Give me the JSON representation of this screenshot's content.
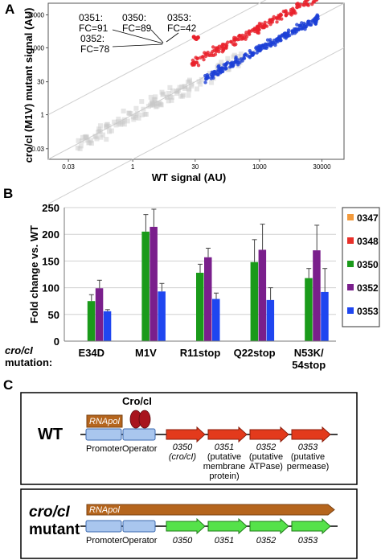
{
  "panels": {
    "a": "A",
    "b": "B",
    "c": "C"
  },
  "colors": {
    "red": "#e8202a",
    "blue": "#1c3fd6",
    "grey": "#c8c8c8",
    "s0347": "#f39a3c",
    "s0348": "#e8302a",
    "s0350": "#1a9a1a",
    "s0352": "#7a1f8c",
    "s0353": "#1f46f0",
    "arrow_red": "#e33a1c",
    "arrow_green": "#55e24a",
    "rnapol": "#b5651d",
    "box_blue": "#a9c6ee",
    "cro_dot": "#a8141e"
  },
  "chart_data": [
    {
      "type": "scatter",
      "xlabel": "WT signal (AU)",
      "ylabel": "cro/cI (M1V) mutant signal (AU)",
      "xscale": "log",
      "yscale": "log",
      "xticks": [
        "0.03",
        "1",
        "30",
        "1000",
        "30000"
      ],
      "yticks": [
        "0.03",
        "1",
        "30",
        "1000",
        "30000"
      ],
      "xlim": [
        0.01,
        100000
      ],
      "ylim": [
        0.01,
        100000
      ],
      "annotations": [
        {
          "label": "0351:",
          "fc": "FC=91"
        },
        {
          "label": "0350:",
          "fc": "FC=89"
        },
        {
          "label": "0353:",
          "fc": "FC=42"
        },
        {
          "label": "0352:",
          "fc": "FC=78"
        }
      ],
      "diagonals": [
        0.01,
        1,
        100
      ]
    },
    {
      "type": "bar",
      "ylabel": "Fold change vs. WT",
      "ylim": [
        0,
        250
      ],
      "yticks": [
        "0",
        "50",
        "100",
        "150",
        "200",
        "250"
      ],
      "categories": [
        "E34D",
        "M1V",
        "R11stop",
        "Q22stop",
        "N53K/\n54stop"
      ],
      "category_lines": [
        [
          "E34D"
        ],
        [
          "M1V"
        ],
        [
          "R11stop"
        ],
        [
          "Q22stop"
        ],
        [
          "N53K/",
          "54stop"
        ]
      ],
      "row_label": [
        "cro/cI",
        "mutation:"
      ],
      "legend_position": "right",
      "series": [
        {
          "name": "0347",
          "values": [
            0.5,
            0.5,
            0.5,
            0.5,
            0.5
          ],
          "err": [
            0,
            0,
            0,
            0,
            0
          ]
        },
        {
          "name": "0348",
          "values": [
            0.5,
            0.5,
            0.5,
            0.5,
            0.5
          ],
          "err": [
            0,
            0,
            0,
            0,
            0
          ]
        },
        {
          "name": "0350",
          "values": [
            75,
            205,
            128,
            148,
            118
          ],
          "err": [
            12,
            32,
            16,
            42,
            18
          ]
        },
        {
          "name": "0352",
          "values": [
            99,
            214,
            157,
            171,
            170
          ],
          "err": [
            15,
            33,
            17,
            48,
            47
          ]
        },
        {
          "name": "0353",
          "values": [
            56,
            93,
            79,
            77,
            92
          ],
          "err": [
            3,
            15,
            11,
            23,
            44
          ]
        }
      ]
    }
  ],
  "diagram": {
    "wt_label": "WT",
    "mutant_label_1": "cro/cI",
    "mutant_label_2": "mutant",
    "rnapol": "RNApol",
    "cro": "Cro/cI",
    "promoter": "Promoter",
    "operator": "Operator",
    "genes": [
      {
        "id": "0350",
        "desc": [
          "(cro/cI)"
        ]
      },
      {
        "id": "0351",
        "desc": [
          "(putative",
          "membrane",
          "protein)"
        ]
      },
      {
        "id": "0352",
        "desc": [
          "(putative",
          "ATPase)"
        ]
      },
      {
        "id": "0353",
        "desc": [
          "(putative",
          "permease)"
        ]
      }
    ]
  }
}
